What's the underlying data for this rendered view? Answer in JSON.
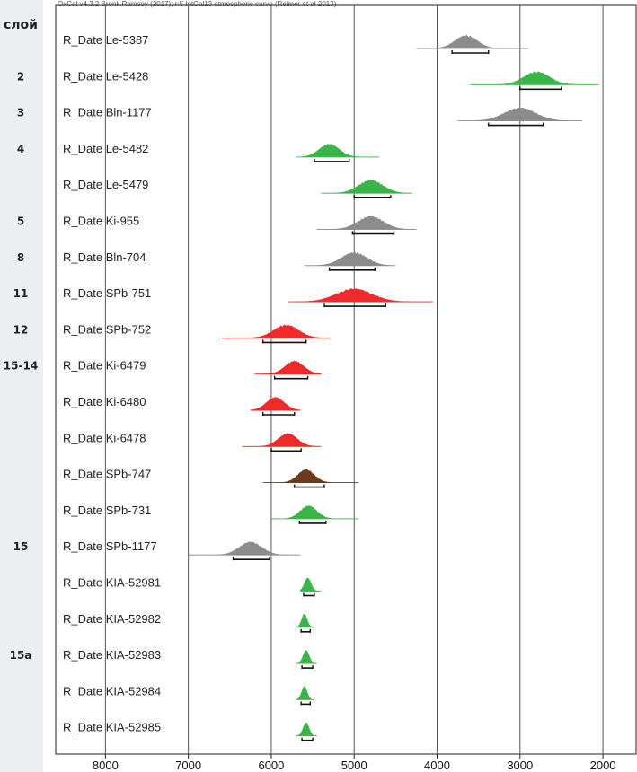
{
  "header": "OxCal v4.3.2 Bronk Ramsey (2017); r:5 IntCal13 atmospheric curve (Reimer et al 2013)",
  "colors": {
    "gray": "#8c8c8c",
    "green": "#3bb54a",
    "red": "#ee2a2a",
    "brown": "#6b3b1c"
  },
  "chart_data": {
    "type": "range-plot",
    "x_axis": {
      "ticks": [
        8000,
        7000,
        6000,
        5000,
        4000,
        3000,
        2000
      ],
      "reversed": true,
      "range": [
        8600,
        1600
      ]
    },
    "grid": true,
    "layer_title": "слой",
    "rows": [
      {
        "label": "R_Date Le-5387",
        "layer": "",
        "color": "gray",
        "peak": 3650,
        "start": 3820,
        "end": 3380,
        "halfwidth": 200,
        "tail": [
          4250,
          2900
        ]
      },
      {
        "label": "R_Date Le-5428",
        "layer": "2",
        "color": "green",
        "peak": 2800,
        "start": 3000,
        "end": 2500,
        "halfwidth": 230,
        "tail": [
          3600,
          2050
        ]
      },
      {
        "label": "R_Date Bln-1177",
        "layer": "3",
        "color": "gray",
        "peak": 3000,
        "start": 3380,
        "end": 2720,
        "halfwidth": 280,
        "tail": [
          3750,
          2250
        ]
      },
      {
        "label": "R_Date Le-5482",
        "layer": "4",
        "color": "green",
        "peak": 5300,
        "start": 5480,
        "end": 5060,
        "halfwidth": 180,
        "tail": [
          5700,
          4700
        ]
      },
      {
        "label": "R_Date Le-5479",
        "layer": "",
        "color": "green",
        "peak": 4800,
        "start": 5000,
        "end": 4560,
        "halfwidth": 220,
        "tail": [
          5400,
          4300
        ]
      },
      {
        "label": "R_Date Ki-955",
        "layer": "5",
        "color": "gray",
        "peak": 4800,
        "start": 5020,
        "end": 4520,
        "halfwidth": 230,
        "tail": [
          5450,
          4250
        ]
      },
      {
        "label": "R_Date Bln-704",
        "layer": "8",
        "color": "gray",
        "peak": 5000,
        "start": 5300,
        "end": 4750,
        "halfwidth": 230,
        "tail": [
          5600,
          4500
        ]
      },
      {
        "label": "R_Date SPb-751",
        "layer": "11",
        "color": "red",
        "peak": 5000,
        "start": 5360,
        "end": 4620,
        "halfwidth": 320,
        "tail": [
          5800,
          4050
        ]
      },
      {
        "label": "R_Date SPb-752",
        "layer": "12",
        "color": "red",
        "peak": 5820,
        "start": 6100,
        "end": 5580,
        "halfwidth": 220,
        "tail": [
          6600,
          5300
        ]
      },
      {
        "label": "R_Date Ki-6479",
        "layer": "15-14",
        "color": "red",
        "peak": 5720,
        "start": 5960,
        "end": 5560,
        "halfwidth": 170,
        "tail": [
          6200,
          5400
        ]
      },
      {
        "label": "R_Date Ki-6480",
        "layer": "",
        "color": "red",
        "peak": 5950,
        "start": 6100,
        "end": 5720,
        "halfwidth": 160,
        "tail": [
          6250,
          5650
        ]
      },
      {
        "label": "R_Date Ki-6478",
        "layer": "",
        "color": "red",
        "peak": 5800,
        "start": 6000,
        "end": 5640,
        "halfwidth": 170,
        "tail": [
          6350,
          5400
        ]
      },
      {
        "label": "R_Date SPb-747",
        "layer": "",
        "color": "brown",
        "peak": 5580,
        "start": 5720,
        "end": 5360,
        "halfwidth": 150,
        "tail": [
          6100,
          4950
        ]
      },
      {
        "label": "R_Date SPb-731",
        "layer": "",
        "color": "green",
        "peak": 5550,
        "start": 5660,
        "end": 5340,
        "halfwidth": 150,
        "tail": [
          6000,
          4950
        ]
      },
      {
        "label": "R_Date SPb-1177",
        "layer": "15",
        "color": "gray",
        "peak": 6250,
        "start": 6460,
        "end": 6020,
        "halfwidth": 200,
        "tail": [
          7000,
          5650
        ]
      },
      {
        "label": "R_Date KIA-52981",
        "layer": "",
        "color": "green",
        "peak": 5560,
        "start": 5610,
        "end": 5480,
        "halfwidth": 60,
        "tail": [
          5650,
          5400
        ]
      },
      {
        "label": "R_Date KIA-52982",
        "layer": "",
        "color": "green",
        "peak": 5600,
        "start": 5640,
        "end": 5530,
        "halfwidth": 50,
        "tail": [
          5700,
          5480
        ]
      },
      {
        "label": "R_Date KIA-52983",
        "layer": "15a",
        "color": "green",
        "peak": 5580,
        "start": 5630,
        "end": 5500,
        "halfwidth": 55,
        "tail": [
          5700,
          5450
        ]
      },
      {
        "label": "R_Date KIA-52984",
        "layer": "",
        "color": "green",
        "peak": 5600,
        "start": 5640,
        "end": 5530,
        "halfwidth": 50,
        "tail": [
          5700,
          5480
        ]
      },
      {
        "label": "R_Date KIA-52985",
        "layer": "",
        "color": "green",
        "peak": 5580,
        "start": 5630,
        "end": 5500,
        "halfwidth": 55,
        "tail": [
          5700,
          5450
        ]
      }
    ]
  }
}
